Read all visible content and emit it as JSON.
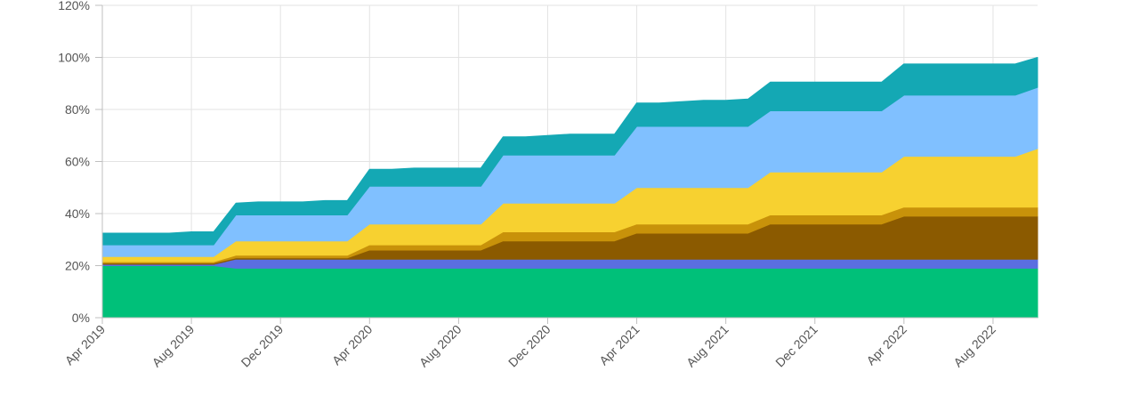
{
  "chart_data": {
    "type": "area",
    "stacked": true,
    "x": [
      "2019-04",
      "2019-05",
      "2019-06",
      "2019-07",
      "2019-08",
      "2019-09",
      "2019-10",
      "2019-11",
      "2019-12",
      "2020-01",
      "2020-02",
      "2020-03",
      "2020-04",
      "2020-05",
      "2020-06",
      "2020-07",
      "2020-08",
      "2020-09",
      "2020-10",
      "2020-11",
      "2020-12",
      "2021-01",
      "2021-02",
      "2021-03",
      "2021-04",
      "2021-05",
      "2021-06",
      "2021-07",
      "2021-08",
      "2021-09",
      "2021-10",
      "2021-11",
      "2021-12",
      "2022-01",
      "2022-02",
      "2022-03",
      "2022-04",
      "2022-05",
      "2022-06",
      "2022-07",
      "2022-08",
      "2022-09",
      "2022-10"
    ],
    "xticks": [
      "Apr 2019",
      "Aug 2019",
      "Dec 2019",
      "Apr 2020",
      "Aug 2020",
      "Dec 2020",
      "Apr 2021",
      "Aug 2021",
      "Dec 2021",
      "Apr 2022",
      "Aug 2022"
    ],
    "yticks": [
      "0%",
      "20%",
      "40%",
      "60%",
      "80%",
      "100%",
      "120%"
    ],
    "ylim": [
      0,
      120
    ],
    "grid": true,
    "series": [
      {
        "color": "#00c079",
        "values": [
          20,
          20,
          20,
          20,
          20,
          20,
          19,
          19,
          19,
          19,
          19,
          19,
          19,
          19,
          19,
          19,
          19,
          19,
          19,
          19,
          19,
          19,
          19,
          19,
          19,
          19,
          19,
          19,
          19,
          19,
          19,
          19,
          19,
          19,
          19,
          19,
          19,
          19,
          19,
          19,
          19,
          19,
          19
        ]
      },
      {
        "color": "#5b6ee1",
        "values": [
          0.5,
          0.5,
          0.5,
          0.5,
          0.5,
          0.5,
          3.5,
          3.5,
          3.5,
          3.5,
          3.5,
          3.5,
          3.5,
          3.5,
          3.5,
          3.5,
          3.5,
          3.5,
          3.5,
          3.5,
          3.5,
          3.5,
          3.5,
          3.5,
          3.5,
          3.5,
          3.5,
          3.5,
          3.5,
          3.5,
          3.5,
          3.5,
          3.5,
          3.5,
          3.5,
          3.5,
          3.5,
          3.5,
          3.5,
          3.5,
          3.5,
          3.5,
          3.5
        ]
      },
      {
        "color": "#8b5a00",
        "values": [
          0.5,
          0.5,
          0.5,
          0.5,
          0.5,
          0.5,
          0.5,
          0.5,
          0.5,
          0.5,
          0.5,
          0.5,
          3.5,
          3.5,
          3.5,
          3.5,
          3.5,
          3.5,
          7,
          7,
          7,
          7,
          7,
          7,
          10,
          10,
          10,
          10,
          10,
          10,
          13.5,
          13.5,
          13.5,
          13.5,
          13.5,
          13.5,
          16.5,
          16.5,
          16.5,
          16.5,
          16.5,
          16.5,
          16.5
        ]
      },
      {
        "color": "#c8920a",
        "values": [
          0.5,
          0.5,
          0.5,
          0.5,
          0.5,
          0.5,
          1,
          1,
          1,
          1,
          1,
          1,
          2,
          2,
          2,
          2,
          2,
          2,
          3.5,
          3.5,
          3.5,
          3.5,
          3.5,
          3.5,
          3.5,
          3.5,
          3.5,
          3.5,
          3.5,
          3.5,
          3.5,
          3.5,
          3.5,
          3.5,
          3.5,
          3.5,
          3.5,
          3.5,
          3.5,
          3.5,
          3.5,
          3.5,
          3.5
        ]
      },
      {
        "color": "#f7d130",
        "values": [
          2,
          2,
          2,
          2,
          2,
          2,
          5.5,
          5.5,
          5.5,
          5.5,
          5.5,
          5.5,
          8,
          8,
          8,
          8,
          8,
          8,
          11,
          11,
          11,
          11,
          11,
          11,
          14,
          14,
          14,
          14,
          14,
          14,
          16.5,
          16.5,
          16.5,
          16.5,
          16.5,
          16.5,
          19.5,
          19.5,
          19.5,
          19.5,
          19.5,
          19.5,
          22.5
        ]
      },
      {
        "color": "#80c0ff",
        "values": [
          4.5,
          4.5,
          4.5,
          4.5,
          4.5,
          4.5,
          10,
          10,
          10,
          10,
          10,
          10,
          14.5,
          14.5,
          14.5,
          14.5,
          14.5,
          14.5,
          18.5,
          18.5,
          18.5,
          18.5,
          18.5,
          18.5,
          23.5,
          23.5,
          23.5,
          23.5,
          23.5,
          23.5,
          23.5,
          23.5,
          23.5,
          23.5,
          23.5,
          23.5,
          23.5,
          23.5,
          23.5,
          23.5,
          23.5,
          23.5,
          23.5
        ]
      },
      {
        "color": "#14a8b4",
        "values": [
          4.5,
          4.5,
          4.5,
          4.5,
          5,
          5,
          4.5,
          5,
          5,
          5,
          5.5,
          5.5,
          6.5,
          6.5,
          7,
          7,
          7,
          7,
          7,
          7,
          7.5,
          8,
          8,
          8,
          9,
          9,
          9.5,
          10,
          10,
          10.5,
          11,
          11,
          11,
          11,
          11,
          11,
          12,
          12,
          12,
          12,
          12,
          12,
          11.5
        ]
      }
    ]
  }
}
